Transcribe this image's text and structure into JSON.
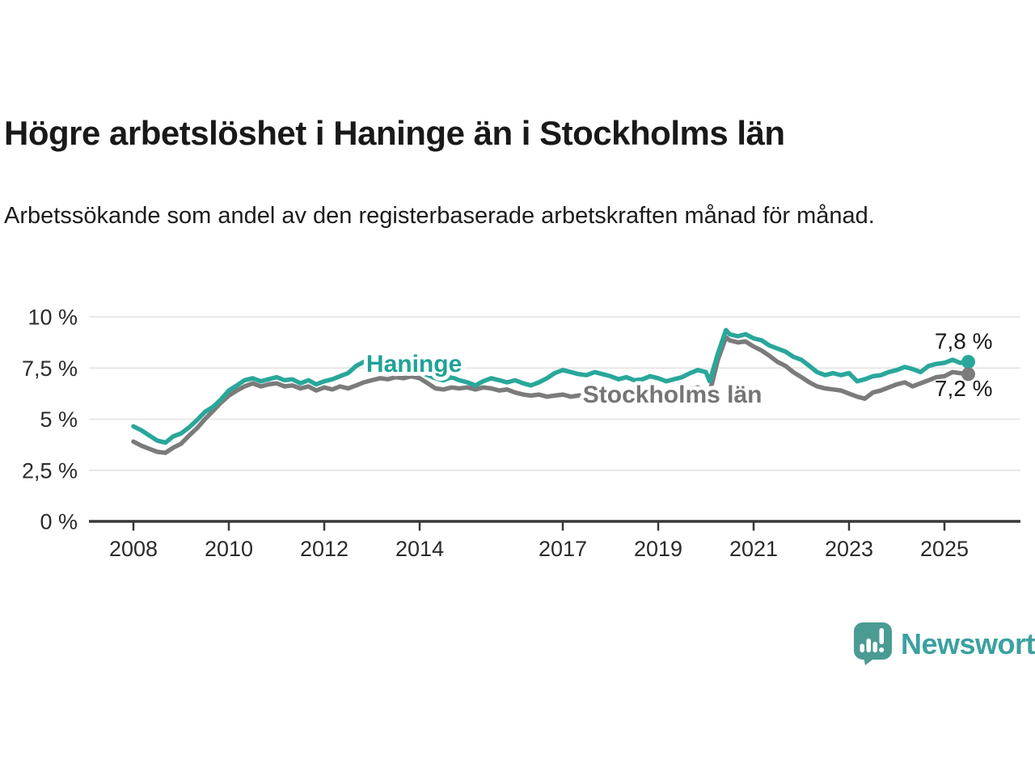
{
  "chart_data": {
    "type": "line",
    "title": "Högre arbetslöshet i Haninge än i Stockholms län",
    "subtitle": "Arbetssökande som andel av den registerbaserade arbetskraften månad för månad.",
    "unit": "%",
    "grid": true,
    "legend": "inline-labels",
    "x_axis": {
      "tick_labels": [
        "2008",
        "2010",
        "2012",
        "2014",
        "2017",
        "2019",
        "2021",
        "2023",
        "2025"
      ],
      "tick_years": [
        2008,
        2010,
        2012,
        2014,
        2017,
        2019,
        2021,
        2023,
        2025
      ],
      "range": [
        2007.1,
        2026.6
      ]
    },
    "y_axis": {
      "tick_labels": [
        "0 %",
        "2,5 %",
        "5 %",
        "7,5 %",
        "10 %"
      ],
      "tick_values": [
        0,
        2.5,
        5,
        7.5,
        10
      ],
      "range": [
        0,
        10
      ]
    },
    "series": [
      {
        "name": "Haninge",
        "slug": "haninge",
        "color": "#29A79A",
        "label_color": "#1FA296",
        "inline_label": {
          "text": "Haninge",
          "x": 2012.88,
          "y": 7.75
        },
        "end": {
          "label": "7,8 %",
          "value": 7.8
        },
        "points": [
          [
            2008.0,
            4.65
          ],
          [
            2008.17,
            4.45
          ],
          [
            2008.33,
            4.2
          ],
          [
            2008.5,
            3.95
          ],
          [
            2008.67,
            3.85
          ],
          [
            2008.83,
            4.15
          ],
          [
            2009.0,
            4.3
          ],
          [
            2009.17,
            4.6
          ],
          [
            2009.33,
            4.95
          ],
          [
            2009.5,
            5.35
          ],
          [
            2009.67,
            5.6
          ],
          [
            2009.83,
            5.95
          ],
          [
            2010.0,
            6.4
          ],
          [
            2010.17,
            6.65
          ],
          [
            2010.33,
            6.9
          ],
          [
            2010.5,
            7.0
          ],
          [
            2010.67,
            6.85
          ],
          [
            2010.83,
            6.95
          ],
          [
            2011.0,
            7.05
          ],
          [
            2011.17,
            6.9
          ],
          [
            2011.33,
            6.95
          ],
          [
            2011.5,
            6.75
          ],
          [
            2011.67,
            6.9
          ],
          [
            2011.83,
            6.7
          ],
          [
            2012.0,
            6.85
          ],
          [
            2012.17,
            6.95
          ],
          [
            2012.33,
            7.1
          ],
          [
            2012.5,
            7.25
          ],
          [
            2012.67,
            7.6
          ],
          [
            2012.83,
            7.8
          ],
          [
            2013.0,
            7.9
          ],
          [
            2013.17,
            7.85
          ],
          [
            2013.33,
            7.9
          ],
          [
            2013.5,
            7.75
          ],
          [
            2013.67,
            7.6
          ],
          [
            2013.83,
            7.45
          ],
          [
            2014.0,
            7.3
          ],
          [
            2014.17,
            7.15
          ],
          [
            2014.33,
            7.0
          ],
          [
            2014.5,
            6.9
          ],
          [
            2014.67,
            7.05
          ],
          [
            2014.83,
            6.9
          ],
          [
            2015.0,
            6.8
          ],
          [
            2015.17,
            6.65
          ],
          [
            2015.33,
            6.85
          ],
          [
            2015.5,
            7.0
          ],
          [
            2015.67,
            6.9
          ],
          [
            2015.83,
            6.8
          ],
          [
            2016.0,
            6.9
          ],
          [
            2016.17,
            6.75
          ],
          [
            2016.33,
            6.65
          ],
          [
            2016.5,
            6.8
          ],
          [
            2016.67,
            7.0
          ],
          [
            2016.83,
            7.25
          ],
          [
            2017.0,
            7.4
          ],
          [
            2017.17,
            7.3
          ],
          [
            2017.33,
            7.2
          ],
          [
            2017.5,
            7.15
          ],
          [
            2017.67,
            7.3
          ],
          [
            2017.83,
            7.2
          ],
          [
            2018.0,
            7.1
          ],
          [
            2018.17,
            6.95
          ],
          [
            2018.33,
            7.05
          ],
          [
            2018.5,
            6.9
          ],
          [
            2018.67,
            6.95
          ],
          [
            2018.83,
            7.1
          ],
          [
            2019.0,
            7.0
          ],
          [
            2019.17,
            6.85
          ],
          [
            2019.33,
            6.95
          ],
          [
            2019.5,
            7.05
          ],
          [
            2019.67,
            7.25
          ],
          [
            2019.83,
            7.4
          ],
          [
            2020.0,
            7.3
          ],
          [
            2020.08,
            6.85
          ],
          [
            2020.25,
            8.2
          ],
          [
            2020.42,
            9.35
          ],
          [
            2020.5,
            9.15
          ],
          [
            2020.67,
            9.05
          ],
          [
            2020.83,
            9.15
          ],
          [
            2021.0,
            8.95
          ],
          [
            2021.17,
            8.85
          ],
          [
            2021.33,
            8.6
          ],
          [
            2021.5,
            8.45
          ],
          [
            2021.67,
            8.3
          ],
          [
            2021.83,
            8.05
          ],
          [
            2022.0,
            7.9
          ],
          [
            2022.17,
            7.6
          ],
          [
            2022.33,
            7.3
          ],
          [
            2022.5,
            7.15
          ],
          [
            2022.67,
            7.25
          ],
          [
            2022.83,
            7.15
          ],
          [
            2023.0,
            7.25
          ],
          [
            2023.17,
            6.85
          ],
          [
            2023.33,
            6.95
          ],
          [
            2023.5,
            7.1
          ],
          [
            2023.67,
            7.15
          ],
          [
            2023.83,
            7.3
          ],
          [
            2024.0,
            7.4
          ],
          [
            2024.17,
            7.55
          ],
          [
            2024.33,
            7.45
          ],
          [
            2024.5,
            7.3
          ],
          [
            2024.67,
            7.6
          ],
          [
            2024.83,
            7.7
          ],
          [
            2025.0,
            7.75
          ],
          [
            2025.17,
            7.9
          ],
          [
            2025.33,
            7.75
          ],
          [
            2025.5,
            7.8
          ]
        ]
      },
      {
        "name": "Stockholms län",
        "slug": "stockholms-lan",
        "color": "#7B7B7B",
        "label_color": "#757575",
        "inline_label": {
          "text": "Stockholms län",
          "x": 2017.42,
          "y": 6.25
        },
        "end": {
          "label": "7,2 %",
          "value": 7.2
        },
        "points": [
          [
            2008.0,
            3.9
          ],
          [
            2008.17,
            3.7
          ],
          [
            2008.33,
            3.55
          ],
          [
            2008.5,
            3.4
          ],
          [
            2008.67,
            3.35
          ],
          [
            2008.83,
            3.6
          ],
          [
            2009.0,
            3.8
          ],
          [
            2009.17,
            4.2
          ],
          [
            2009.33,
            4.55
          ],
          [
            2009.5,
            5.0
          ],
          [
            2009.67,
            5.4
          ],
          [
            2009.83,
            5.8
          ],
          [
            2010.0,
            6.15
          ],
          [
            2010.17,
            6.4
          ],
          [
            2010.33,
            6.6
          ],
          [
            2010.5,
            6.75
          ],
          [
            2010.67,
            6.6
          ],
          [
            2010.83,
            6.7
          ],
          [
            2011.0,
            6.75
          ],
          [
            2011.17,
            6.6
          ],
          [
            2011.33,
            6.65
          ],
          [
            2011.5,
            6.5
          ],
          [
            2011.67,
            6.6
          ],
          [
            2011.83,
            6.4
          ],
          [
            2012.0,
            6.55
          ],
          [
            2012.17,
            6.45
          ],
          [
            2012.33,
            6.6
          ],
          [
            2012.5,
            6.5
          ],
          [
            2012.67,
            6.65
          ],
          [
            2012.83,
            6.8
          ],
          [
            2013.0,
            6.9
          ],
          [
            2013.17,
            7.0
          ],
          [
            2013.33,
            6.95
          ],
          [
            2013.5,
            7.05
          ],
          [
            2013.67,
            7.0
          ],
          [
            2013.83,
            7.1
          ],
          [
            2014.0,
            7.0
          ],
          [
            2014.17,
            6.75
          ],
          [
            2014.33,
            6.5
          ],
          [
            2014.5,
            6.45
          ],
          [
            2014.67,
            6.55
          ],
          [
            2014.83,
            6.5
          ],
          [
            2015.0,
            6.55
          ],
          [
            2015.17,
            6.45
          ],
          [
            2015.33,
            6.55
          ],
          [
            2015.5,
            6.5
          ],
          [
            2015.67,
            6.4
          ],
          [
            2015.83,
            6.45
          ],
          [
            2016.0,
            6.3
          ],
          [
            2016.17,
            6.2
          ],
          [
            2016.33,
            6.15
          ],
          [
            2016.5,
            6.2
          ],
          [
            2016.67,
            6.1
          ],
          [
            2016.83,
            6.15
          ],
          [
            2017.0,
            6.2
          ],
          [
            2017.17,
            6.1
          ],
          [
            2017.33,
            6.15
          ],
          [
            2017.5,
            6.2
          ],
          [
            2017.67,
            6.25
          ],
          [
            2017.83,
            6.3
          ],
          [
            2018.0,
            6.3
          ],
          [
            2018.17,
            6.25
          ],
          [
            2018.33,
            6.3
          ],
          [
            2018.5,
            6.35
          ],
          [
            2018.67,
            6.3
          ],
          [
            2018.83,
            6.35
          ],
          [
            2019.0,
            6.35
          ],
          [
            2019.17,
            6.4
          ],
          [
            2019.33,
            6.4
          ],
          [
            2019.5,
            6.45
          ],
          [
            2019.67,
            6.5
          ],
          [
            2019.83,
            6.55
          ],
          [
            2020.0,
            6.45
          ],
          [
            2020.08,
            6.3
          ],
          [
            2020.25,
            7.9
          ],
          [
            2020.42,
            9.0
          ],
          [
            2020.5,
            8.85
          ],
          [
            2020.67,
            8.75
          ],
          [
            2020.83,
            8.8
          ],
          [
            2021.0,
            8.55
          ],
          [
            2021.17,
            8.35
          ],
          [
            2021.33,
            8.1
          ],
          [
            2021.5,
            7.8
          ],
          [
            2021.67,
            7.6
          ],
          [
            2021.83,
            7.3
          ],
          [
            2022.0,
            7.05
          ],
          [
            2022.17,
            6.8
          ],
          [
            2022.33,
            6.6
          ],
          [
            2022.5,
            6.5
          ],
          [
            2022.67,
            6.45
          ],
          [
            2022.83,
            6.4
          ],
          [
            2023.0,
            6.25
          ],
          [
            2023.17,
            6.1
          ],
          [
            2023.33,
            6.0
          ],
          [
            2023.5,
            6.3
          ],
          [
            2023.67,
            6.4
          ],
          [
            2023.83,
            6.55
          ],
          [
            2024.0,
            6.7
          ],
          [
            2024.17,
            6.8
          ],
          [
            2024.33,
            6.6
          ],
          [
            2024.5,
            6.75
          ],
          [
            2024.67,
            6.9
          ],
          [
            2024.83,
            7.05
          ],
          [
            2025.0,
            7.1
          ],
          [
            2025.17,
            7.3
          ],
          [
            2025.33,
            7.25
          ],
          [
            2025.5,
            7.2
          ]
        ]
      }
    ]
  },
  "footer": {
    "brand": "Newsworthy",
    "icon_color": "#4A9B93",
    "text_color": "#3BA0A1"
  }
}
